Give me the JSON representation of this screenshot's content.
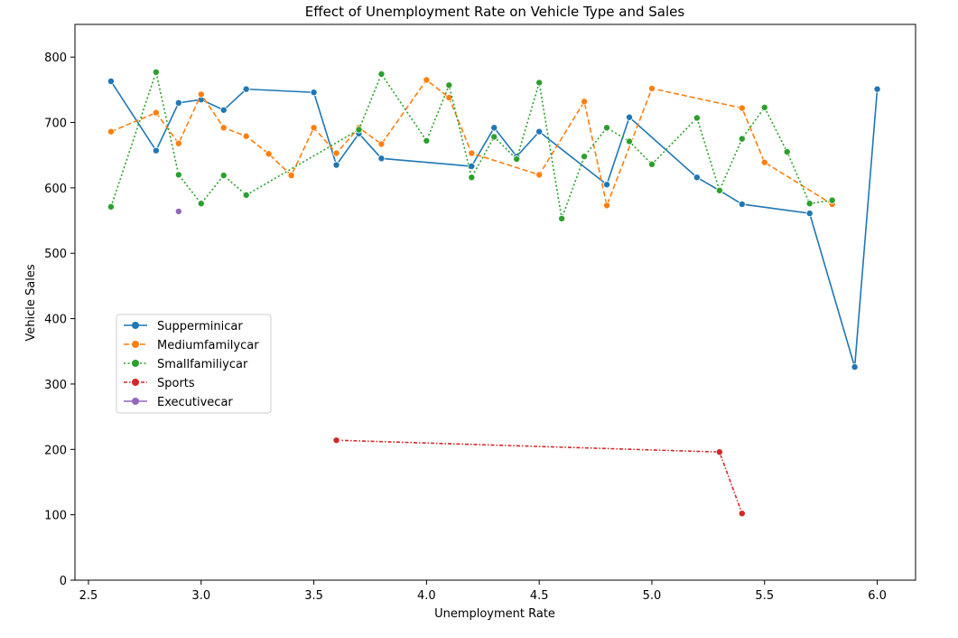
{
  "chart_data": {
    "type": "line",
    "title": "Effect of Unemployment Rate on Vehicle Type and Sales",
    "xlabel": "Unemployment Rate",
    "ylabel": "Vehicle Sales",
    "xlim": [
      2.44,
      6.17
    ],
    "ylim": [
      0,
      850
    ],
    "x_ticks": [
      2.5,
      3.0,
      3.5,
      4.0,
      4.5,
      5.0,
      5.5,
      6.0
    ],
    "x_tick_labels": [
      "2.5",
      "3.0",
      "3.5",
      "4.0",
      "4.5",
      "5.0",
      "5.5",
      "6.0"
    ],
    "y_ticks": [
      0,
      100,
      200,
      300,
      400,
      500,
      600,
      700,
      800
    ],
    "y_tick_labels": [
      "0",
      "100",
      "200",
      "300",
      "400",
      "500",
      "600",
      "700",
      "800"
    ],
    "grid": false,
    "legend_position": "center-left",
    "series": [
      {
        "name": "Supperminicar",
        "color": "#1f77b4",
        "dash": "solid",
        "x": [
          2.6,
          2.8,
          2.9,
          3.0,
          3.1,
          3.2,
          3.5,
          3.6,
          3.7,
          3.8,
          4.2,
          4.3,
          4.4,
          4.5,
          4.8,
          4.9,
          5.2,
          5.3,
          5.4,
          5.7,
          5.9,
          6.0
        ],
        "y": [
          763,
          657,
          730,
          735,
          719,
          751,
          746,
          635,
          683,
          645,
          633,
          692,
          648,
          686,
          605,
          708,
          616,
          596,
          575,
          561,
          326,
          751
        ]
      },
      {
        "name": "Mediumfamilycar",
        "color": "#ff7f0e",
        "dash": "dashed",
        "x": [
          2.6,
          2.8,
          2.9,
          3.0,
          3.1,
          3.2,
          3.3,
          3.4,
          3.5,
          3.6,
          3.7,
          3.8,
          4.0,
          4.1,
          4.2,
          4.5,
          4.7,
          4.8,
          5.0,
          5.4,
          5.5,
          5.8
        ],
        "y": [
          686,
          715,
          668,
          743,
          692,
          679,
          652,
          619,
          692,
          653,
          692,
          667,
          765,
          738,
          653,
          620,
          732,
          573,
          752,
          722,
          639,
          575
        ]
      },
      {
        "name": "Smallfamiliycar",
        "color": "#2ca02c",
        "dash": "dotted",
        "x": [
          2.6,
          2.8,
          2.9,
          3.0,
          3.1,
          3.2,
          3.7,
          3.8,
          4.0,
          4.1,
          4.2,
          4.3,
          4.4,
          4.5,
          4.6,
          4.7,
          4.8,
          4.9,
          5.0,
          5.2,
          5.3,
          5.4,
          5.5,
          5.6,
          5.7,
          5.8
        ],
        "y": [
          571,
          777,
          620,
          576,
          619,
          589,
          689,
          774,
          672,
          757,
          616,
          678,
          644,
          761,
          553,
          648,
          692,
          671,
          636,
          707,
          596,
          675,
          723,
          655,
          576,
          581
        ]
      },
      {
        "name": "Sports",
        "color": "#d62728",
        "dash": "dashdot",
        "x": [
          3.6,
          5.3,
          5.4
        ],
        "y": [
          214,
          196,
          102
        ]
      },
      {
        "name": "Executivecar",
        "color": "#9467bd",
        "dash": "solid",
        "x": [
          2.9
        ],
        "y": [
          564
        ]
      }
    ]
  }
}
